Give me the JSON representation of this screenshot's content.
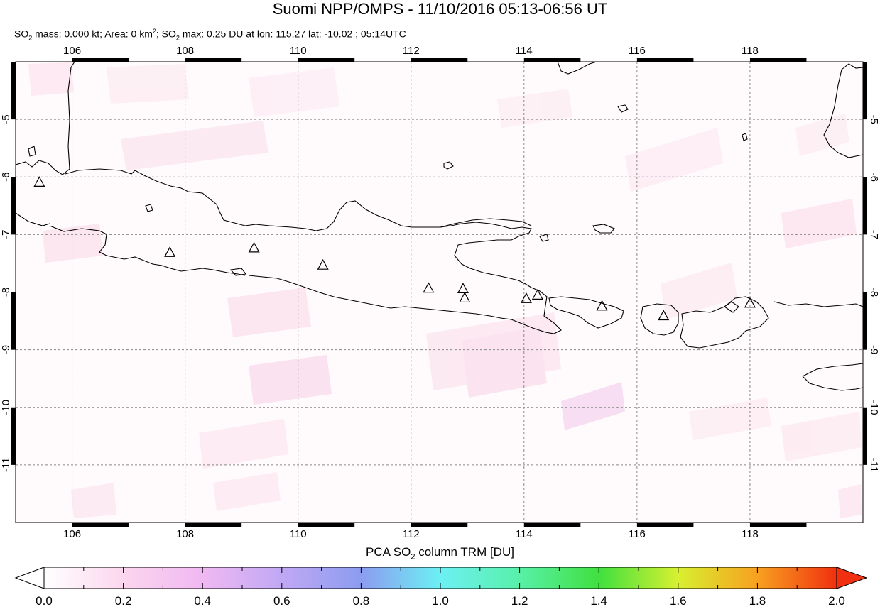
{
  "title": "Suomi NPP/OMPS - 11/10/2016 05:13-06:56 UT",
  "subtitle": {
    "so2_mass_label": "SO",
    "so2_mass_rest": " mass: 0.000 kt; Area: 0 km",
    "area_sup": "2",
    "so2_max_label": "; SO",
    "so2_max_rest": " max: 0.25 DU at lon: 115.27 lat: -10.02 ; 05:14UTC",
    "sub2": "2"
  },
  "map": {
    "lon_ticks": [
      "106",
      "108",
      "110",
      "112",
      "114",
      "116",
      "118"
    ],
    "lat_ticks": [
      "-5",
      "-6",
      "-7",
      "-8",
      "-9",
      "-10",
      "-11"
    ],
    "lon_range": [
      105,
      120
    ],
    "lat_range": [
      -12,
      -4
    ],
    "colors": {
      "land_outline": "#000000",
      "grid": "#888888",
      "volcano": "#000000"
    },
    "volcanoes": [
      {
        "lon": 105.42,
        "lat": -6.1
      },
      {
        "lon": 107.73,
        "lat": -7.32
      },
      {
        "lon": 109.22,
        "lat": -7.24
      },
      {
        "lon": 110.44,
        "lat": -7.54
      },
      {
        "lon": 112.31,
        "lat": -7.94
      },
      {
        "lon": 112.92,
        "lat": -7.95
      },
      {
        "lon": 112.95,
        "lat": -8.11
      },
      {
        "lon": 114.04,
        "lat": -8.12
      },
      {
        "lon": 114.24,
        "lat": -8.06
      },
      {
        "lon": 115.38,
        "lat": -8.25
      },
      {
        "lon": 116.47,
        "lat": -8.42
      },
      {
        "lon": 118.0,
        "lat": -8.2
      }
    ]
  },
  "colorbar": {
    "label_main": "PCA SO",
    "label_sub": "2",
    "label_rest": " column TRM [DU]",
    "ticks": [
      "0.0",
      "0.2",
      "0.4",
      "0.6",
      "0.8",
      "1.0",
      "1.2",
      "1.4",
      "1.6",
      "1.8",
      "2.0"
    ],
    "range": [
      0,
      2
    ]
  }
}
